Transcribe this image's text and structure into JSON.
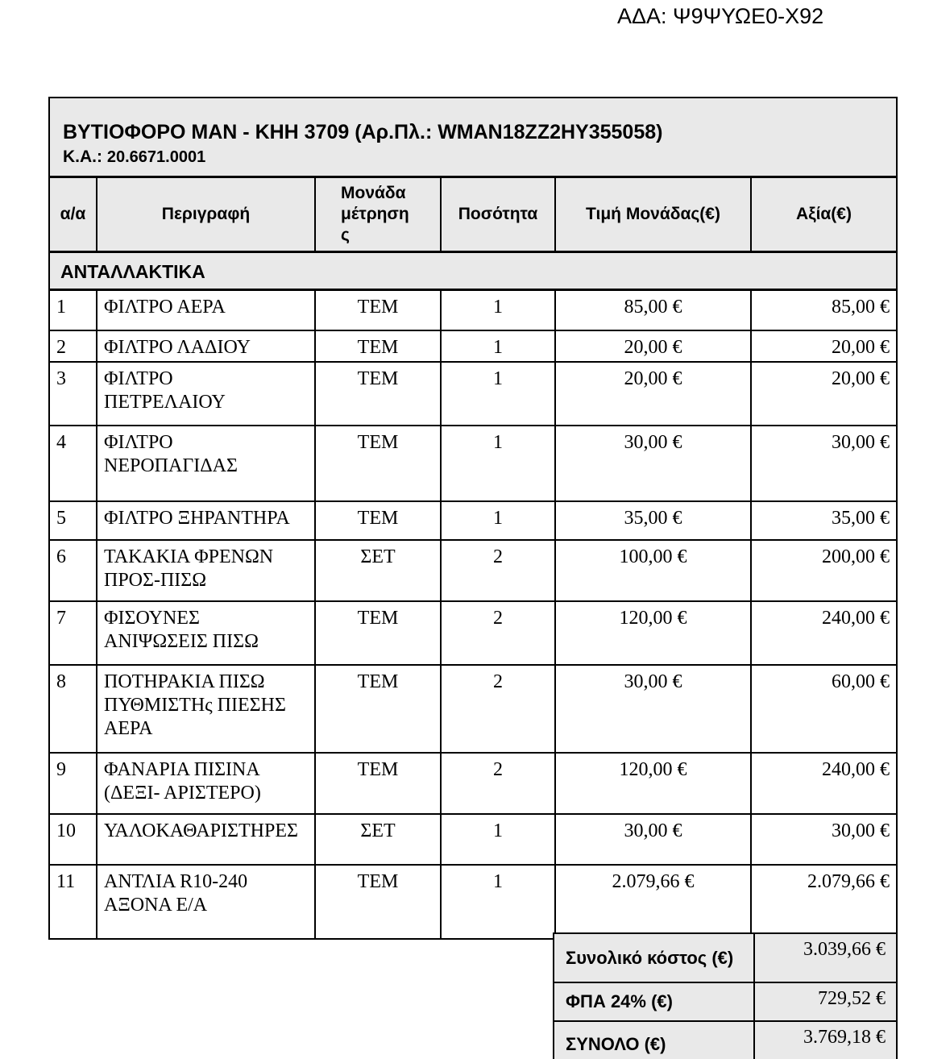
{
  "page": {
    "ada": "ΑΔΑ: Ψ9ΨΥΩΕ0-Χ92"
  },
  "table": {
    "title_line1": "ΒΥΤΙΟΦΟΡΟ MAN - ΚΗΗ 3709 (Αρ.Πλ.: WMAN18ZZ2HY355058)",
    "code_label": "Κ.Α.:",
    "code_value": "20.6671.0001",
    "columns": [
      "α/α",
      "Περιγραφή",
      "Μονάδα μέτρησης",
      "Ποσότητα",
      "Τιμή Μονάδας(€)",
      "Αξία(€)"
    ],
    "section": "ΑΝΤΑΛΛΑΚΤΙΚΑ",
    "rows": [
      {
        "num": "1",
        "desc": "ΦΙΛΤΡΟ ΑΕΡΑ",
        "unit": "ΤΕΜ",
        "qty": "1",
        "unit_price": "85,00 €",
        "value": "85,00 €"
      },
      {
        "num": "2",
        "desc": "ΦΙΛΤΡΟ ΛΑΔΙΟΥ",
        "unit": "ΤΕΜ",
        "qty": "1",
        "unit_price": "20,00 €",
        "value": "20,00 €"
      },
      {
        "num": "3",
        "desc": "ΦΙΛΤΡΟ\nΠΕΤΡΕΛΑΙΟΥ",
        "unit": "ΤΕΜ",
        "qty": "1",
        "unit_price": "20,00 €",
        "value": "20,00 €"
      },
      {
        "num": "4",
        "desc": "ΦΙΛΤΡΟ\nΝΕΡΟΠΑΓΙΔΑΣ",
        "unit": "ΤΕΜ",
        "qty": "1",
        "unit_price": "30,00 €",
        "value": "30,00 €"
      },
      {
        "num": "5",
        "desc": "ΦΙΛΤΡΟ ΞΗΡΑΝΤΗΡΑ",
        "unit": "ΤΕΜ",
        "qty": "1",
        "unit_price": "35,00 €",
        "value": "35,00 €"
      },
      {
        "num": "6",
        "desc": "ΤΑΚΑΚΙΑ ΦΡΕΝΩΝ\nΠΡΟΣ-ΠΙΣΩ",
        "unit": "ΣΕΤ",
        "qty": "2",
        "unit_price": "100,00 €",
        "value": "200,00 €"
      },
      {
        "num": "7",
        "desc": "ΦΙΣΟΥΝΕΣ\nΑΝΙΨΩΣΕΙΣ ΠΙΣΩ",
        "unit": "ΤΕΜ",
        "qty": "2",
        "unit_price": "120,00 €",
        "value": "240,00 €"
      },
      {
        "num": "8",
        "desc": "ΠΟΤΗΡΑΚΙΑ ΠΙΣΩ\nΠΥΘΜΙΣΤΗς ΠΙΕΣΗΣ\nΑΕΡΑ",
        "unit": "ΤΕΜ",
        "qty": "2",
        "unit_price": "30,00 €",
        "value": "60,00 €"
      },
      {
        "num": "9",
        "desc": "ΦΑΝΑΡΙΑ ΠΙΣΙΝΑ\n(ΔΕΞΙ- ΑΡΙΣΤΕΡΟ)",
        "unit": "ΤΕΜ",
        "qty": "2",
        "unit_price": "120,00 €",
        "value": "240,00 €"
      },
      {
        "num": "10",
        "desc": "ΥΑΛΟΚΑΘΑΡΙΣΤΗΡΕΣ",
        "unit": "ΣΕΤ",
        "qty": "1",
        "unit_price": "30,00 €",
        "value": "30,00 €"
      },
      {
        "num": "11",
        "desc": "ΑΝΤΛΙΑ R10-240\nΑΞΟΝΑ Ε/Α",
        "unit": "ΤΕΜ",
        "qty": "1",
        "unit_price": "2.079,66 €",
        "value": "2.079,66 €"
      }
    ],
    "totals": [
      {
        "label": "Συνολικό κόστος (€)",
        "value": "3.039,66 €"
      },
      {
        "label": "ΦΠΑ 24% (€)",
        "value": "729,52 €"
      },
      {
        "label": "ΣΥΝΟΛΟ (€)",
        "value": "3.769,18 €"
      }
    ],
    "colors": {
      "header_fill": "#e9e9e9",
      "border": "#000000",
      "text": "#000000",
      "page_background": "#ffffff"
    }
  }
}
